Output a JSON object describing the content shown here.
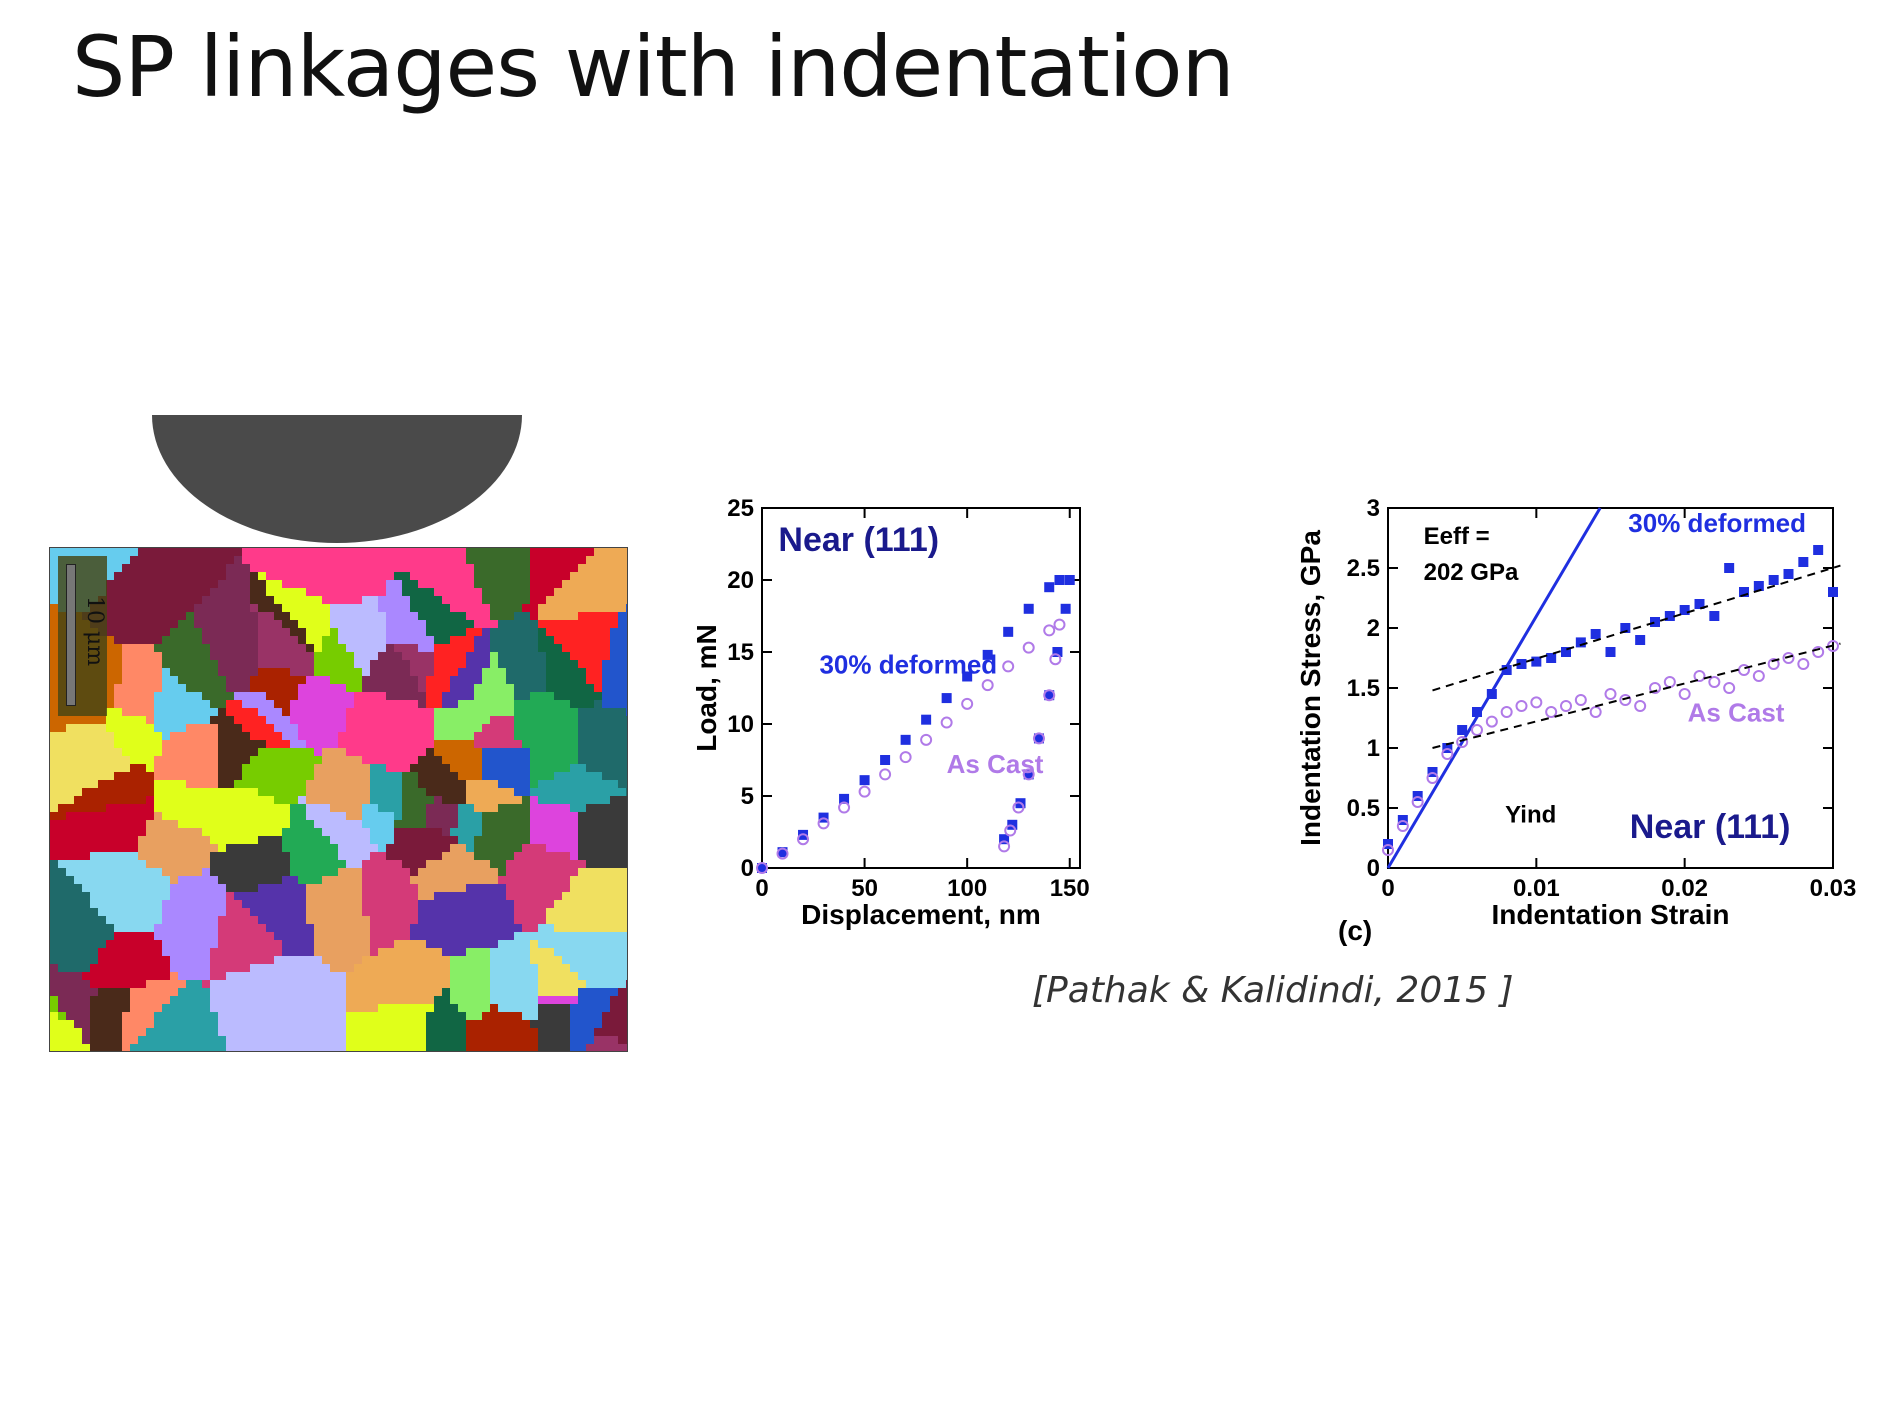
{
  "slide": {
    "title": "SP linkages with indentation",
    "citation": "[Pathak & Kalidindi, 2015 ]"
  },
  "micrograph": {
    "scalebar_label": "10 μm",
    "grain_colors": [
      "#e0ff1a",
      "#7b2a55",
      "#2aa0a6",
      "#d43a78",
      "#3a6a2a",
      "#e8a060",
      "#1f6a6a",
      "#5533aa",
      "#ff3a8a",
      "#4a2a1a",
      "#88d8f0",
      "#c8002a",
      "#f0e060",
      "#7a1a3a",
      "#2255cc",
      "#aa88ff",
      "#22aa55",
      "#ff8866",
      "#dd44dd",
      "#3a3a3a",
      "#88ee66",
      "#cc6600",
      "#66ccee",
      "#993366",
      "#eeaa55",
      "#ff2222",
      "#116644",
      "#bbbbff",
      "#aa2200",
      "#77cc00"
    ]
  },
  "chart_data": [
    {
      "type": "scatter",
      "id": "load-displacement",
      "xlabel": "Displacement, nm",
      "ylabel": "Load, mN",
      "xlim": [
        0,
        155
      ],
      "ylim": [
        0,
        25
      ],
      "xticks": [
        0,
        50,
        100,
        150
      ],
      "yticks": [
        0,
        5,
        10,
        15,
        20,
        25
      ],
      "grid": false,
      "annotations": [
        {
          "text": "Near (111)",
          "x": 8,
          "y": 22,
          "color": "#1a1a8c"
        }
      ],
      "series": [
        {
          "name": "30% deformed",
          "color": "#1f2fe0",
          "marker": "square",
          "label_pos": {
            "x": 28,
            "y": 13.5
          },
          "x": [
            0,
            10,
            20,
            30,
            40,
            50,
            60,
            70,
            80,
            90,
            100,
            110,
            120,
            130,
            140,
            145,
            150,
            148,
            144,
            140,
            135,
            130,
            126,
            122,
            118
          ],
          "y": [
            0,
            1.1,
            2.3,
            3.5,
            4.8,
            6.1,
            7.5,
            8.9,
            10.3,
            11.8,
            13.3,
            14.8,
            16.4,
            18.0,
            19.5,
            20.0,
            20.0,
            18.0,
            15.0,
            12.0,
            9.0,
            6.5,
            4.5,
            3.0,
            2.0
          ]
        },
        {
          "name": "As Cast",
          "color": "#b07ae8",
          "marker": "circle",
          "label_pos": {
            "x": 90,
            "y": 6.6
          },
          "x": [
            0,
            10,
            20,
            30,
            40,
            50,
            60,
            70,
            80,
            90,
            100,
            110,
            120,
            130,
            140,
            145,
            143,
            140,
            135,
            130,
            125,
            121,
            118
          ],
          "y": [
            0,
            1.0,
            2.0,
            3.1,
            4.2,
            5.3,
            6.5,
            7.7,
            8.9,
            10.1,
            11.4,
            12.7,
            14.0,
            15.3,
            16.5,
            16.9,
            14.5,
            12.0,
            9.0,
            6.5,
            4.2,
            2.6,
            1.5
          ]
        }
      ]
    },
    {
      "type": "scatter",
      "id": "stress-strain",
      "panel_label": "(c)",
      "xlabel": "Indentation Strain",
      "ylabel": "Indentation Stress, GPa",
      "xlim": [
        0,
        0.03
      ],
      "ylim": [
        0,
        3
      ],
      "xticks": [
        0,
        0.01,
        0.02,
        0.03
      ],
      "xtick_labels": [
        "0",
        "0.01",
        "0.02",
        "0.03"
      ],
      "yticks": [
        0,
        0.5,
        1,
        1.5,
        2,
        2.5,
        3
      ],
      "ytick_labels": [
        "0",
        "0.5",
        "1",
        "1.5",
        "2",
        "2.5",
        "3"
      ],
      "grid": false,
      "annotations": [
        {
          "text": "Near (111)",
          "x": 0.0163,
          "y": 0.25,
          "color": "#1a1a8c"
        },
        {
          "text": "Eeff =",
          "x": 0.0024,
          "y": 2.7,
          "color": "#000000"
        },
        {
          "text": "202 GPa",
          "x": 0.0024,
          "y": 2.4,
          "color": "#000000"
        },
        {
          "text": "Yind",
          "x": 0.0079,
          "y": 0.38,
          "color": "#000000"
        }
      ],
      "elastic_line": {
        "x": [
          0,
          0.0143
        ],
        "y": [
          0,
          3.0
        ],
        "color": "#1f2fe0"
      },
      "fit_lines": [
        {
          "x": [
            0.003,
            0.0305
          ],
          "y": [
            1.48,
            2.52
          ]
        },
        {
          "x": [
            0.003,
            0.0305
          ],
          "y": [
            1.0,
            1.87
          ]
        }
      ],
      "series": [
        {
          "name": "30% deformed",
          "color": "#1f2fe0",
          "marker": "square",
          "label_pos": {
            "x": 0.0162,
            "y": 2.8
          },
          "x": [
            0,
            0.001,
            0.002,
            0.003,
            0.004,
            0.005,
            0.006,
            0.007,
            0.008,
            0.009,
            0.01,
            0.011,
            0.012,
            0.013,
            0.014,
            0.015,
            0.016,
            0.017,
            0.018,
            0.019,
            0.02,
            0.021,
            0.022,
            0.023,
            0.024,
            0.025,
            0.026,
            0.027,
            0.028,
            0.029,
            0.03
          ],
          "y": [
            0.2,
            0.4,
            0.6,
            0.8,
            1.0,
            1.15,
            1.3,
            1.45,
            1.65,
            1.7,
            1.72,
            1.75,
            1.8,
            1.88,
            1.95,
            1.8,
            2.0,
            1.9,
            2.05,
            2.1,
            2.15,
            2.2,
            2.1,
            2.5,
            2.3,
            2.35,
            2.4,
            2.45,
            2.55,
            2.65,
            2.3
          ]
        },
        {
          "name": "As Cast",
          "color": "#b07ae8",
          "marker": "circle",
          "label_pos": {
            "x": 0.0202,
            "y": 1.22
          },
          "x": [
            0,
            0.001,
            0.002,
            0.003,
            0.004,
            0.005,
            0.006,
            0.007,
            0.008,
            0.009,
            0.01,
            0.011,
            0.012,
            0.013,
            0.014,
            0.015,
            0.016,
            0.017,
            0.018,
            0.019,
            0.02,
            0.021,
            0.022,
            0.023,
            0.024,
            0.025,
            0.026,
            0.027,
            0.028,
            0.029,
            0.03
          ],
          "y": [
            0.15,
            0.35,
            0.55,
            0.75,
            0.95,
            1.05,
            1.15,
            1.22,
            1.3,
            1.35,
            1.38,
            1.3,
            1.35,
            1.4,
            1.3,
            1.45,
            1.4,
            1.35,
            1.5,
            1.55,
            1.45,
            1.6,
            1.55,
            1.5,
            1.65,
            1.6,
            1.7,
            1.75,
            1.7,
            1.8,
            1.85
          ]
        }
      ]
    }
  ]
}
